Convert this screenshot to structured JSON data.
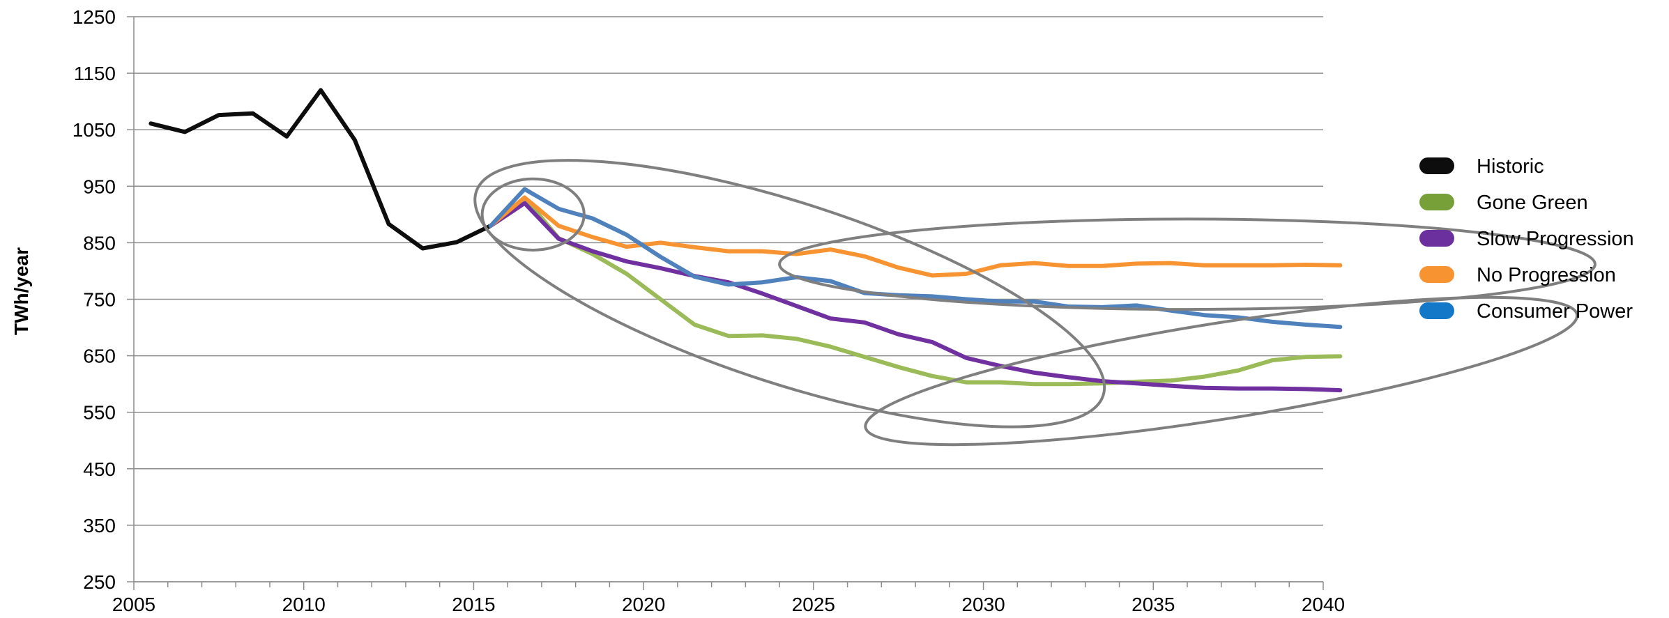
{
  "chart_data": {
    "type": "line",
    "title": "",
    "xlabel": "",
    "ylabel": "TWh/year",
    "xlim": [
      2005,
      2040
    ],
    "ylim": [
      250,
      1250
    ],
    "x_ticks": [
      2005,
      2010,
      2015,
      2020,
      2025,
      2030,
      2035,
      2040
    ],
    "y_ticks": [
      250,
      350,
      450,
      550,
      650,
      750,
      850,
      950,
      1050,
      1150,
      1250
    ],
    "grid": "horizontal",
    "legend_position": "right",
    "series": [
      {
        "name": "Historic",
        "color": "#0d0d0d",
        "points": [
          [
            2005,
            1061
          ],
          [
            2006,
            1046
          ],
          [
            2007,
            1076
          ],
          [
            2008,
            1079
          ],
          [
            2009,
            1038
          ],
          [
            2010,
            1120
          ],
          [
            2011,
            1032
          ],
          [
            2012,
            883
          ],
          [
            2013,
            840
          ],
          [
            2014,
            851
          ],
          [
            2015,
            880
          ]
        ]
      },
      {
        "name": "Gone Green",
        "color": "#9bbb59",
        "points": [
          [
            2015,
            880
          ],
          [
            2016,
            930
          ],
          [
            2017,
            858
          ],
          [
            2018,
            830
          ],
          [
            2019,
            795
          ],
          [
            2020,
            750
          ],
          [
            2021,
            705
          ],
          [
            2022,
            685
          ],
          [
            2023,
            686
          ],
          [
            2024,
            680
          ],
          [
            2025,
            666
          ],
          [
            2026,
            648
          ],
          [
            2027,
            630
          ],
          [
            2028,
            614
          ],
          [
            2029,
            603
          ],
          [
            2030,
            603
          ],
          [
            2031,
            600
          ],
          [
            2032,
            600
          ],
          [
            2033,
            601
          ],
          [
            2034,
            604
          ],
          [
            2035,
            606
          ],
          [
            2036,
            613
          ],
          [
            2037,
            624
          ],
          [
            2038,
            642
          ],
          [
            2039,
            648
          ],
          [
            2040,
            649
          ]
        ]
      },
      {
        "name": "Slow Progression",
        "color": "#7030a0",
        "points": [
          [
            2015,
            880
          ],
          [
            2016,
            920
          ],
          [
            2017,
            857
          ],
          [
            2018,
            835
          ],
          [
            2019,
            817
          ],
          [
            2020,
            805
          ],
          [
            2021,
            791
          ],
          [
            2022,
            780
          ],
          [
            2023,
            760
          ],
          [
            2024,
            738
          ],
          [
            2025,
            716
          ],
          [
            2026,
            709
          ],
          [
            2027,
            688
          ],
          [
            2028,
            674
          ],
          [
            2029,
            646
          ],
          [
            2030,
            632
          ],
          [
            2031,
            620
          ],
          [
            2032,
            612
          ],
          [
            2033,
            605
          ],
          [
            2034,
            601
          ],
          [
            2035,
            597
          ],
          [
            2036,
            593
          ],
          [
            2037,
            592
          ],
          [
            2038,
            592
          ],
          [
            2039,
            591
          ],
          [
            2040,
            589
          ]
        ]
      },
      {
        "name": "No Progression",
        "color": "#f79431",
        "points": [
          [
            2015,
            880
          ],
          [
            2016,
            930
          ],
          [
            2017,
            880
          ],
          [
            2018,
            860
          ],
          [
            2019,
            843
          ],
          [
            2020,
            850
          ],
          [
            2021,
            842
          ],
          [
            2022,
            835
          ],
          [
            2023,
            835
          ],
          [
            2024,
            830
          ],
          [
            2025,
            838
          ],
          [
            2026,
            826
          ],
          [
            2027,
            806
          ],
          [
            2028,
            792
          ],
          [
            2029,
            795
          ],
          [
            2030,
            810
          ],
          [
            2031,
            814
          ],
          [
            2032,
            809
          ],
          [
            2033,
            809
          ],
          [
            2034,
            813
          ],
          [
            2035,
            814
          ],
          [
            2036,
            810
          ],
          [
            2037,
            810
          ],
          [
            2038,
            810
          ],
          [
            2039,
            811
          ],
          [
            2040,
            810
          ]
        ]
      },
      {
        "name": "Consumer Power",
        "color": "#4f81bd",
        "points": [
          [
            2015,
            880
          ],
          [
            2016,
            945
          ],
          [
            2017,
            910
          ],
          [
            2018,
            893
          ],
          [
            2019,
            864
          ],
          [
            2020,
            825
          ],
          [
            2021,
            790
          ],
          [
            2022,
            776
          ],
          [
            2023,
            780
          ],
          [
            2024,
            789
          ],
          [
            2025,
            782
          ],
          [
            2026,
            761
          ],
          [
            2027,
            757
          ],
          [
            2028,
            755
          ],
          [
            2029,
            750
          ],
          [
            2030,
            746
          ],
          [
            2031,
            746
          ],
          [
            2032,
            737
          ],
          [
            2033,
            736
          ],
          [
            2034,
            739
          ],
          [
            2035,
            730
          ],
          [
            2036,
            722
          ],
          [
            2037,
            718
          ],
          [
            2038,
            710
          ],
          [
            2039,
            705
          ],
          [
            2040,
            701
          ]
        ]
      }
    ],
    "legend": [
      {
        "label": "Historic",
        "color": "#0d0d0d"
      },
      {
        "label": "Gone Green",
        "color": "#77a138"
      },
      {
        "label": "Slow Progression",
        "color": "#6b2f9e"
      },
      {
        "label": "No Progression",
        "color": "#f79431"
      },
      {
        "label": "Consumer Power",
        "color": "#1478c8"
      }
    ],
    "annotations": [
      {
        "type": "ellipse",
        "color": "#7f7f7f",
        "cx": 2016.25,
        "cy": 900,
        "rx": 1.5,
        "ry": 63,
        "rotation": 0
      },
      {
        "type": "ellipse",
        "color": "#7f7f7f",
        "cx": 2023.8,
        "cy": 760,
        "rx": 9.7,
        "ry": 160,
        "rotation": 18
      },
      {
        "type": "ellipse",
        "color": "#7f7f7f",
        "cx": 2035.5,
        "cy": 812,
        "rx": 12,
        "ry": 80,
        "rotation": 0
      },
      {
        "type": "ellipse",
        "color": "#7f7f7f",
        "cx": 2036.5,
        "cy": 623,
        "rx": 10.6,
        "ry": 85,
        "rotation": -9
      }
    ]
  }
}
